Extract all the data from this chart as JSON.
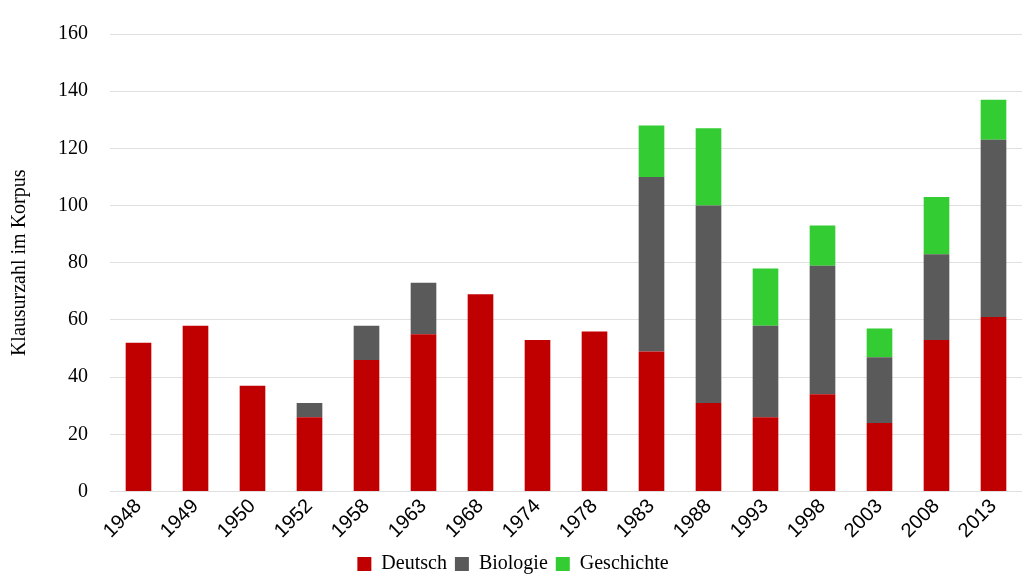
{
  "chart_data": {
    "type": "bar",
    "stacked": true,
    "ylabel": "Klausurzahl im Korpus",
    "categories": [
      "1948",
      "1949",
      "1950",
      "1952",
      "1958",
      "1963",
      "1968",
      "1974",
      "1978",
      "1983",
      "1988",
      "1993",
      "1998",
      "2003",
      "2008",
      "2013"
    ],
    "series": [
      {
        "name": "Deutsch",
        "color": "#c00000",
        "values": [
          52,
          58,
          37,
          26,
          46,
          55,
          69,
          53,
          56,
          49,
          31,
          26,
          34,
          24,
          53,
          61
        ]
      },
      {
        "name": "Biologie",
        "color": "#5a5a5a",
        "values": [
          null,
          null,
          null,
          5,
          12,
          18,
          null,
          null,
          null,
          61,
          69,
          32,
          45,
          23,
          30,
          62
        ]
      },
      {
        "name": "Geschichte",
        "color": "#33cc33",
        "values": [
          null,
          null,
          null,
          null,
          null,
          null,
          null,
          null,
          null,
          18,
          27,
          20,
          14,
          10,
          20,
          14
        ]
      }
    ],
    "ylim": [
      0,
      160
    ],
    "yticks": [
      0,
      20,
      40,
      60,
      80,
      100,
      120,
      140,
      160
    ],
    "grid": "y",
    "legend": "bottom"
  }
}
